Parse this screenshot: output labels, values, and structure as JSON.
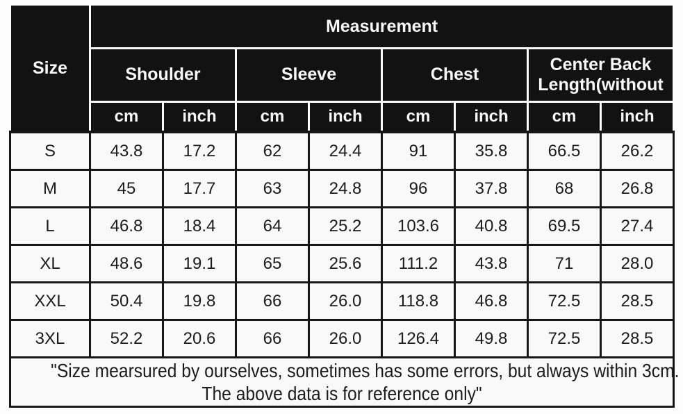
{
  "table": {
    "corner_label": "Size",
    "top_header": "Measurement",
    "groups": [
      {
        "label": "Shoulder"
      },
      {
        "label": "Sleeve"
      },
      {
        "label": "Chest"
      },
      {
        "label": "Center Back\nLength(without"
      }
    ],
    "unit_cm": "cm",
    "unit_inch": "inch",
    "rows": [
      {
        "size": "S",
        "values": [
          "43.8",
          "17.2",
          "62",
          "24.4",
          "91",
          "35.8",
          "66.5",
          "26.2"
        ]
      },
      {
        "size": "M",
        "values": [
          "45",
          "17.7",
          "63",
          "24.8",
          "96",
          "37.8",
          "68",
          "26.8"
        ]
      },
      {
        "size": "L",
        "values": [
          "46.8",
          "18.4",
          "64",
          "25.2",
          "103.6",
          "40.8",
          "69.5",
          "27.4"
        ]
      },
      {
        "size": "XL",
        "values": [
          "48.6",
          "19.1",
          "65",
          "25.6",
          "111.2",
          "43.8",
          "71",
          "28.0"
        ]
      },
      {
        "size": "XXL",
        "values": [
          "50.4",
          "19.8",
          "66",
          "26.0",
          "118.8",
          "46.8",
          "72.5",
          "28.5"
        ]
      },
      {
        "size": "3XL",
        "values": [
          "52.2",
          "20.6",
          "66",
          "26.0",
          "126.4",
          "49.8",
          "72.5",
          "28.5"
        ]
      }
    ],
    "footer": {
      "line1": "\"Size mearsured by ourselves, sometimes has some errors, but always within 3cm.",
      "line2": "The above data is for reference only\""
    }
  },
  "colors": {
    "header_bg": "#121212",
    "header_text": "#f8f8f8",
    "body_bg": "#f9f9f9",
    "body_text": "#1c1c1c",
    "grid": "#161616"
  }
}
